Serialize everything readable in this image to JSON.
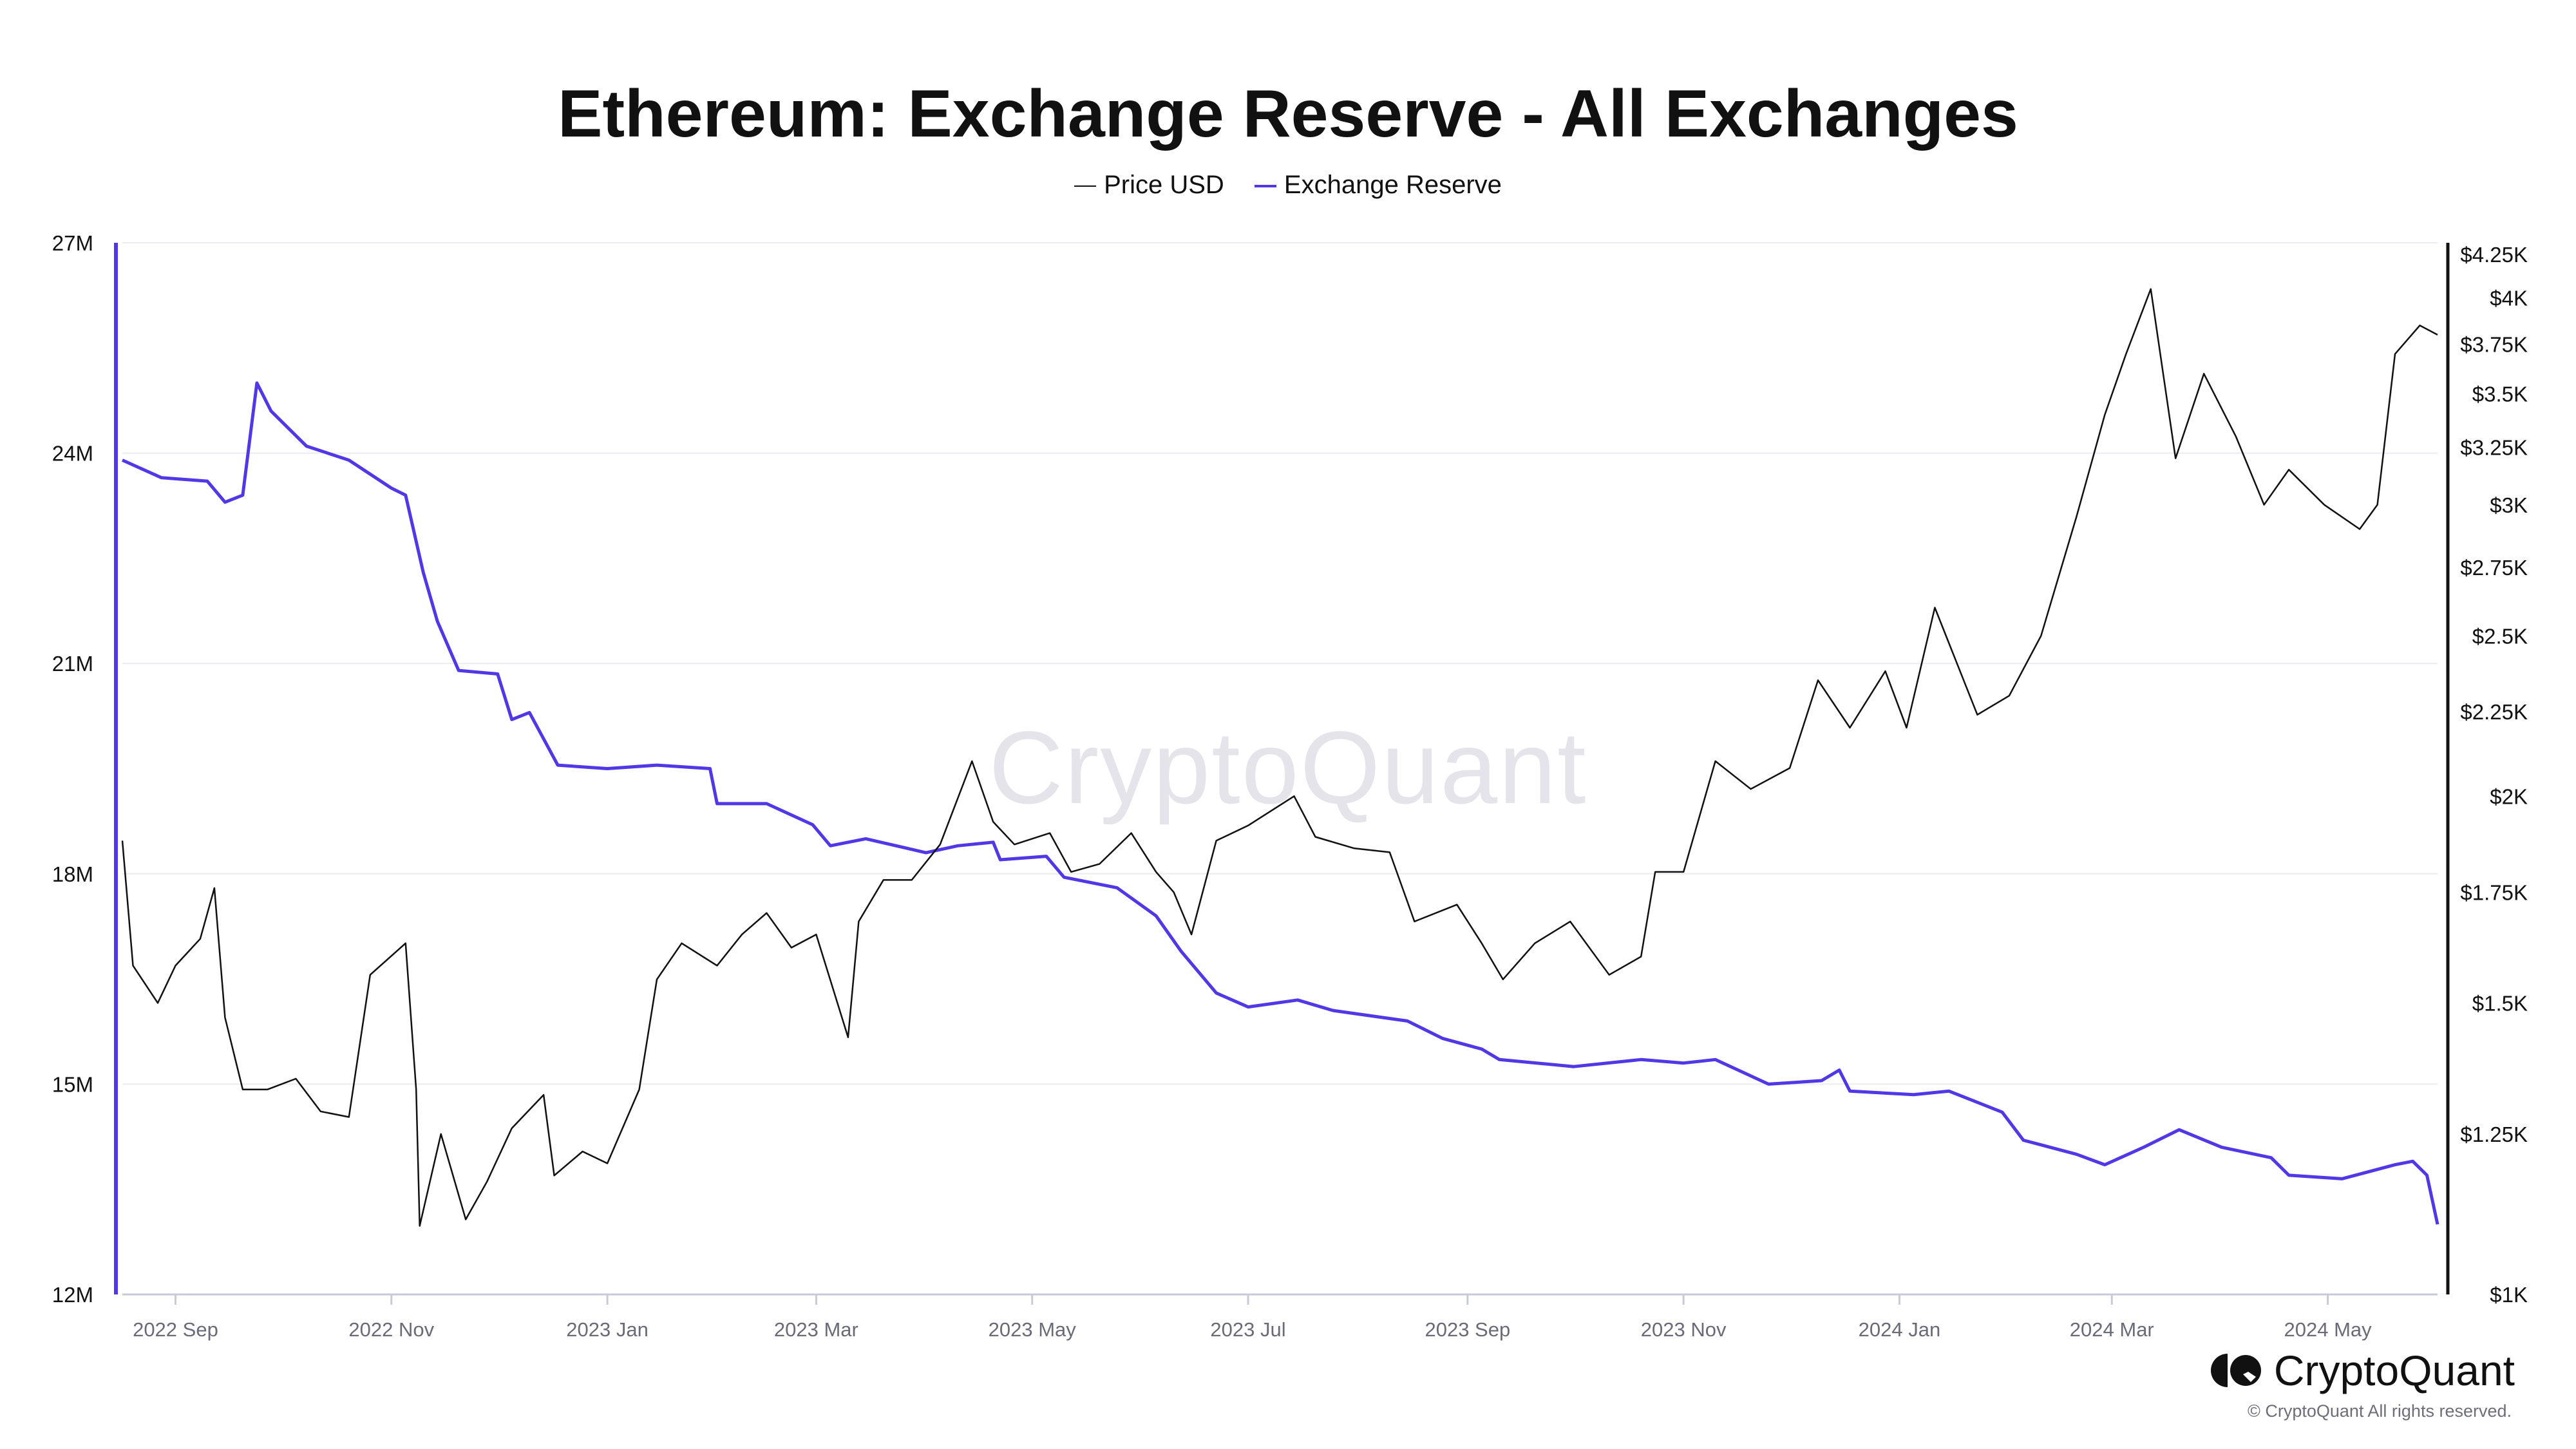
{
  "colors": {
    "price": "#111111",
    "reserve": "#5038e8",
    "grid": "#ececf0",
    "axis_bottom": "#c9cad8",
    "tick_text": "#6a6a78"
  },
  "chart_data": {
    "type": "line",
    "title": "Ethereum: Exchange Reserve - All Exchanges",
    "legend": [
      {
        "name": "Price USD",
        "color": "#111111"
      },
      {
        "name": "Exchange Reserve",
        "color": "#5038e8"
      }
    ],
    "legend_position": "top-center",
    "x_range": [
      "2022-08-17",
      "2024-06-01"
    ],
    "x_ticks": [
      {
        "date": "2022-09-01",
        "label": "2022 Sep"
      },
      {
        "date": "2022-11-01",
        "label": "2022 Nov"
      },
      {
        "date": "2023-01-01",
        "label": "2023 Jan"
      },
      {
        "date": "2023-03-01",
        "label": "2023 Mar"
      },
      {
        "date": "2023-05-01",
        "label": "2023 May"
      },
      {
        "date": "2023-07-01",
        "label": "2023 Jul"
      },
      {
        "date": "2023-09-01",
        "label": "2023 Sep"
      },
      {
        "date": "2023-11-01",
        "label": "2023 Nov"
      },
      {
        "date": "2024-01-01",
        "label": "2024 Jan"
      },
      {
        "date": "2024-03-01",
        "label": "2024 Mar"
      },
      {
        "date": "2024-05-01",
        "label": "2024 May"
      }
    ],
    "y_left": {
      "label": "Exchange Reserve",
      "range": [
        12,
        27
      ],
      "unit": "M",
      "ticks": [
        {
          "v": 12,
          "label": "12M"
        },
        {
          "v": 15,
          "label": "15M"
        },
        {
          "v": 18,
          "label": "18M"
        },
        {
          "v": 21,
          "label": "21M"
        },
        {
          "v": 24,
          "label": "24M"
        },
        {
          "v": 27,
          "label": "27M"
        }
      ]
    },
    "y_right": {
      "label": "Price USD",
      "scale": "log",
      "range": [
        1000,
        4250
      ],
      "ticks": [
        {
          "v": 1000,
          "label": "$1K"
        },
        {
          "v": 1250,
          "label": "$1.25K"
        },
        {
          "v": 1500,
          "label": "$1.5K"
        },
        {
          "v": 1750,
          "label": "$1.75K"
        },
        {
          "v": 2000,
          "label": "$2K"
        },
        {
          "v": 2250,
          "label": "$2.25K"
        },
        {
          "v": 2500,
          "label": "$2.5K"
        },
        {
          "v": 2750,
          "label": "$2.75K"
        },
        {
          "v": 3000,
          "label": "$3K"
        },
        {
          "v": 3250,
          "label": "$3.25K"
        },
        {
          "v": 3500,
          "label": "$3.5K"
        },
        {
          "v": 3750,
          "label": "$3.75K"
        },
        {
          "v": 4000,
          "label": "$4K"
        },
        {
          "v": 4250,
          "label": "$4.25K"
        }
      ]
    },
    "grid": true,
    "series": [
      {
        "name": "Exchange Reserve",
        "axis": "left",
        "points": [
          [
            "2022-08-17",
            23.9
          ],
          [
            "2022-08-28",
            23.65
          ],
          [
            "2022-09-10",
            23.6
          ],
          [
            "2022-09-15",
            23.3
          ],
          [
            "2022-09-20",
            23.4
          ],
          [
            "2022-09-24",
            25.0
          ],
          [
            "2022-09-28",
            24.6
          ],
          [
            "2022-10-08",
            24.1
          ],
          [
            "2022-10-20",
            23.9
          ],
          [
            "2022-11-01",
            23.5
          ],
          [
            "2022-11-05",
            23.4
          ],
          [
            "2022-11-10",
            22.3
          ],
          [
            "2022-11-14",
            21.6
          ],
          [
            "2022-11-20",
            20.9
          ],
          [
            "2022-12-01",
            20.85
          ],
          [
            "2022-12-05",
            20.2
          ],
          [
            "2022-12-10",
            20.3
          ],
          [
            "2022-12-18",
            19.55
          ],
          [
            "2023-01-01",
            19.5
          ],
          [
            "2023-01-15",
            19.55
          ],
          [
            "2023-01-30",
            19.5
          ],
          [
            "2023-02-01",
            19.0
          ],
          [
            "2023-02-15",
            19.0
          ],
          [
            "2023-02-28",
            18.7
          ],
          [
            "2023-03-05",
            18.4
          ],
          [
            "2023-03-15",
            18.5
          ],
          [
            "2023-04-01",
            18.3
          ],
          [
            "2023-04-10",
            18.4
          ],
          [
            "2023-04-20",
            18.45
          ],
          [
            "2023-04-22",
            18.2
          ],
          [
            "2023-05-05",
            18.25
          ],
          [
            "2023-05-10",
            17.95
          ],
          [
            "2023-05-25",
            17.8
          ],
          [
            "2023-06-05",
            17.4
          ],
          [
            "2023-06-12",
            16.9
          ],
          [
            "2023-06-22",
            16.3
          ],
          [
            "2023-07-01",
            16.1
          ],
          [
            "2023-07-15",
            16.2
          ],
          [
            "2023-07-25",
            16.05
          ],
          [
            "2023-08-15",
            15.9
          ],
          [
            "2023-08-25",
            15.65
          ],
          [
            "2023-09-05",
            15.5
          ],
          [
            "2023-09-10",
            15.35
          ],
          [
            "2023-10-01",
            15.25
          ],
          [
            "2023-10-20",
            15.35
          ],
          [
            "2023-11-01",
            15.3
          ],
          [
            "2023-11-10",
            15.35
          ],
          [
            "2023-11-25",
            15.0
          ],
          [
            "2023-12-10",
            15.05
          ],
          [
            "2023-12-15",
            15.2
          ],
          [
            "2023-12-18",
            14.9
          ],
          [
            "2024-01-05",
            14.85
          ],
          [
            "2024-01-15",
            14.9
          ],
          [
            "2024-01-30",
            14.6
          ],
          [
            "2024-02-05",
            14.2
          ],
          [
            "2024-02-20",
            14.0
          ],
          [
            "2024-02-28",
            13.85
          ],
          [
            "2024-03-10",
            14.1
          ],
          [
            "2024-03-20",
            14.35
          ],
          [
            "2024-04-01",
            14.1
          ],
          [
            "2024-04-15",
            13.95
          ],
          [
            "2024-04-20",
            13.7
          ],
          [
            "2024-05-05",
            13.65
          ],
          [
            "2024-05-20",
            13.85
          ],
          [
            "2024-05-25",
            13.9
          ],
          [
            "2024-05-29",
            13.7
          ],
          [
            "2024-06-01",
            13.0
          ]
        ]
      },
      {
        "name": "Price USD",
        "axis": "right",
        "points": [
          [
            "2022-08-17",
            1880
          ],
          [
            "2022-08-20",
            1580
          ],
          [
            "2022-08-27",
            1500
          ],
          [
            "2022-09-01",
            1580
          ],
          [
            "2022-09-08",
            1640
          ],
          [
            "2022-09-12",
            1760
          ],
          [
            "2022-09-15",
            1470
          ],
          [
            "2022-09-20",
            1330
          ],
          [
            "2022-09-27",
            1330
          ],
          [
            "2022-10-05",
            1350
          ],
          [
            "2022-10-12",
            1290
          ],
          [
            "2022-10-20",
            1280
          ],
          [
            "2022-10-26",
            1560
          ],
          [
            "2022-11-05",
            1630
          ],
          [
            "2022-11-08",
            1330
          ],
          [
            "2022-11-09",
            1100
          ],
          [
            "2022-11-15",
            1250
          ],
          [
            "2022-11-22",
            1110
          ],
          [
            "2022-11-28",
            1170
          ],
          [
            "2022-12-05",
            1260
          ],
          [
            "2022-12-14",
            1320
          ],
          [
            "2022-12-17",
            1180
          ],
          [
            "2022-12-25",
            1220
          ],
          [
            "2023-01-01",
            1200
          ],
          [
            "2023-01-10",
            1330
          ],
          [
            "2023-01-15",
            1550
          ],
          [
            "2023-01-22",
            1630
          ],
          [
            "2023-02-01",
            1580
          ],
          [
            "2023-02-08",
            1650
          ],
          [
            "2023-02-15",
            1700
          ],
          [
            "2023-02-22",
            1620
          ],
          [
            "2023-03-01",
            1650
          ],
          [
            "2023-03-10",
            1430
          ],
          [
            "2023-03-13",
            1680
          ],
          [
            "2023-03-20",
            1780
          ],
          [
            "2023-03-28",
            1780
          ],
          [
            "2023-04-05",
            1870
          ],
          [
            "2023-04-14",
            2100
          ],
          [
            "2023-04-20",
            1930
          ],
          [
            "2023-04-26",
            1870
          ],
          [
            "2023-05-06",
            1900
          ],
          [
            "2023-05-12",
            1800
          ],
          [
            "2023-05-20",
            1820
          ],
          [
            "2023-05-29",
            1900
          ],
          [
            "2023-06-05",
            1800
          ],
          [
            "2023-06-10",
            1750
          ],
          [
            "2023-06-15",
            1650
          ],
          [
            "2023-06-22",
            1880
          ],
          [
            "2023-07-01",
            1920
          ],
          [
            "2023-07-14",
            2000
          ],
          [
            "2023-07-20",
            1890
          ],
          [
            "2023-07-31",
            1860
          ],
          [
            "2023-08-10",
            1850
          ],
          [
            "2023-08-17",
            1680
          ],
          [
            "2023-08-29",
            1720
          ],
          [
            "2023-09-05",
            1630
          ],
          [
            "2023-09-11",
            1550
          ],
          [
            "2023-09-20",
            1630
          ],
          [
            "2023-09-30",
            1680
          ],
          [
            "2023-10-11",
            1560
          ],
          [
            "2023-10-20",
            1600
          ],
          [
            "2023-10-24",
            1800
          ],
          [
            "2023-11-01",
            1800
          ],
          [
            "2023-11-10",
            2100
          ],
          [
            "2023-11-20",
            2020
          ],
          [
            "2023-12-01",
            2080
          ],
          [
            "2023-12-09",
            2350
          ],
          [
            "2023-12-18",
            2200
          ],
          [
            "2023-12-28",
            2380
          ],
          [
            "2024-01-03",
            2200
          ],
          [
            "2024-01-11",
            2600
          ],
          [
            "2024-01-23",
            2240
          ],
          [
            "2024-02-01",
            2300
          ],
          [
            "2024-02-10",
            2500
          ],
          [
            "2024-02-20",
            2950
          ],
          [
            "2024-02-28",
            3400
          ],
          [
            "2024-03-05",
            3700
          ],
          [
            "2024-03-12",
            4050
          ],
          [
            "2024-03-19",
            3200
          ],
          [
            "2024-03-27",
            3600
          ],
          [
            "2024-04-05",
            3300
          ],
          [
            "2024-04-13",
            3000
          ],
          [
            "2024-04-20",
            3150
          ],
          [
            "2024-04-30",
            3000
          ],
          [
            "2024-05-10",
            2900
          ],
          [
            "2024-05-15",
            3000
          ],
          [
            "2024-05-20",
            3700
          ],
          [
            "2024-05-27",
            3850
          ],
          [
            "2024-06-01",
            3800
          ]
        ]
      }
    ]
  },
  "watermark": "CryptoQuant",
  "brand": {
    "name": "CryptoQuant",
    "copyright": "© CryptoQuant All rights reserved."
  }
}
